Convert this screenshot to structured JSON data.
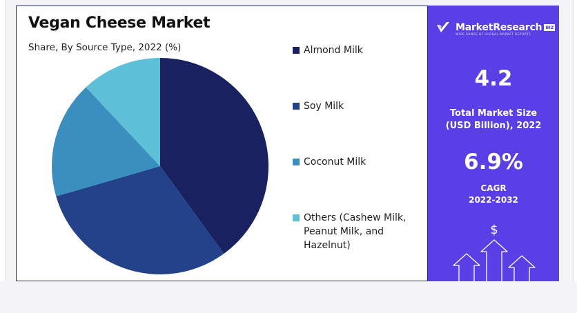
{
  "chart_data": {
    "type": "pie",
    "title": "Vegan Cheese Market",
    "subtitle": "Share, By Source Type, 2022 (%)",
    "slices": [
      {
        "label": "Almond Milk",
        "value": 40.0,
        "color": "#1a2160"
      },
      {
        "label": "Soy Milk",
        "value": 30.5,
        "color": "#24428a"
      },
      {
        "label": "Coconut Milk",
        "value": 17.5,
        "color": "#3a8fbf"
      },
      {
        "label": "Others (Cashew Milk, Peanut Milk, and Hazelnut)",
        "value": 12.0,
        "color": "#5ec0d6"
      }
    ],
    "legend_position": "right"
  },
  "sidebar": {
    "brand_name": "MarketResearch",
    "brand_badge": "BIZ",
    "brand_tagline": "WIDE RANGE OF GLOBAL MARKET REPORTS",
    "market_size_value": "4.2",
    "market_size_label_line1": "Total Market Size",
    "market_size_label_line2": "(USD Billion), 2022",
    "cagr_value": "6.9%",
    "cagr_label_line1": "CAGR",
    "cagr_label_line2": "2022-2032",
    "currency_symbol": "$",
    "background_color": "#5a3ee6"
  }
}
